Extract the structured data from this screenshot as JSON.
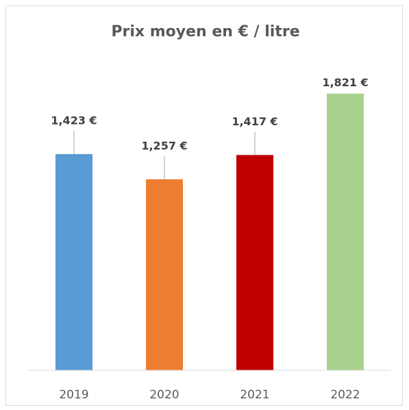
{
  "chart_data": {
    "type": "bar",
    "title": "Prix moyen en € / litre",
    "categories": [
      "2019",
      "2020",
      "2021",
      "2022"
    ],
    "values": [
      1.423,
      1.257,
      1.417,
      1.821
    ],
    "value_labels": [
      "1,423 €",
      "1,257 €",
      "1,417 €",
      "1,821 €"
    ],
    "colors": [
      "#5b9bd5",
      "#ed7d31",
      "#c00000",
      "#a9d18e"
    ],
    "ylim": [
      0,
      2
    ]
  }
}
